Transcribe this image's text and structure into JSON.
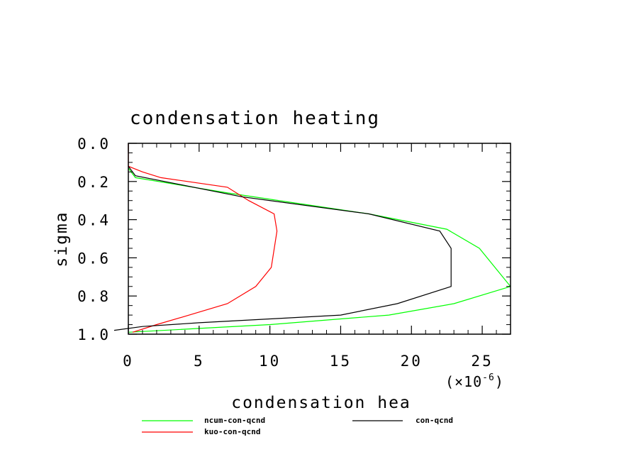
{
  "chart_data": {
    "type": "line",
    "title": "condensation heating",
    "xlabel": "condensation hea",
    "ylabel": "sigma",
    "x_multiplier_prefix": "(×10",
    "x_multiplier_exp": "-6",
    "x_multiplier_suffix": ")",
    "xlim": [
      0,
      27
    ],
    "ylim": [
      0,
      1.0
    ],
    "y_inverted": true,
    "x_ticks": [
      0,
      5,
      10,
      15,
      20,
      25
    ],
    "x_tick_labels": [
      "0",
      "5",
      "10",
      "15",
      "20",
      "25"
    ],
    "y_ticks": [
      0,
      0.2,
      0.4,
      0.6,
      0.8,
      1.0
    ],
    "y_tick_labels": [
      "0.0",
      "0.2",
      "0.4",
      "0.6",
      "0.8",
      "1.0"
    ],
    "grid": false,
    "series": [
      {
        "name": "ncum-con-qcnd",
        "color": "#00ff00",
        "points": [
          [
            0,
            0.13
          ],
          [
            0.5,
            0.18
          ],
          [
            7,
            0.26
          ],
          [
            17,
            0.37
          ],
          [
            22.5,
            0.45
          ],
          [
            24.8,
            0.55
          ],
          [
            27,
            0.75
          ],
          [
            23,
            0.84
          ],
          [
            18.4,
            0.9
          ],
          [
            15,
            0.92
          ],
          [
            10,
            0.95
          ],
          [
            5,
            0.97
          ],
          [
            0,
            0.99
          ]
        ]
      },
      {
        "name": "kuo-con-qcnd",
        "color": "#ff0000",
        "points": [
          [
            0,
            0.0
          ],
          [
            0,
            0.12
          ],
          [
            1,
            0.15
          ],
          [
            2.3,
            0.18
          ],
          [
            7,
            0.23
          ],
          [
            8.5,
            0.3
          ],
          [
            10.3,
            0.37
          ],
          [
            10.5,
            0.46
          ],
          [
            10.1,
            0.65
          ],
          [
            9,
            0.75
          ],
          [
            7,
            0.84
          ],
          [
            4.3,
            0.9
          ],
          [
            2,
            0.95
          ],
          [
            0.3,
            0.99
          ]
        ]
      },
      {
        "name": "con-qcnd",
        "color": "#000000",
        "points": [
          [
            0,
            0.12
          ],
          [
            0.5,
            0.17
          ],
          [
            8,
            0.28
          ],
          [
            17,
            0.37
          ],
          [
            22,
            0.46
          ],
          [
            22.8,
            0.55
          ],
          [
            22.8,
            0.75
          ],
          [
            19,
            0.84
          ],
          [
            15,
            0.9
          ],
          [
            10,
            0.92
          ],
          [
            5,
            0.94
          ],
          [
            1,
            0.96
          ],
          [
            -1,
            0.98
          ]
        ]
      }
    ]
  }
}
